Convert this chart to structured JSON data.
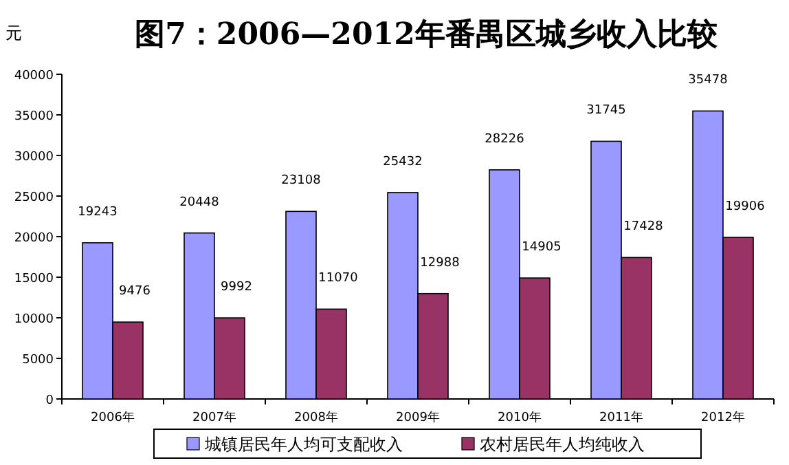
{
  "chart_data": {
    "type": "bar",
    "title": "图7：2006—2012年番禺区城乡收入比较",
    "ylabel": "元",
    "categories": [
      "2006年",
      "2007年",
      "2008年",
      "2009年",
      "2010年",
      "2011年",
      "2012年"
    ],
    "series": [
      {
        "name": "城镇居民年人均可支配收入",
        "color": "#9999ff",
        "values": [
          19243,
          20448,
          23108,
          25432,
          28226,
          31745,
          35478
        ]
      },
      {
        "name": "农村居民年人均纯收入",
        "color": "#993366",
        "values": [
          9476,
          9992,
          11070,
          12988,
          14905,
          17428,
          19906
        ]
      }
    ],
    "ylim": [
      0,
      40000
    ],
    "yticks": [
      0,
      5000,
      10000,
      15000,
      20000,
      25000,
      30000,
      35000,
      40000
    ],
    "data_labels": true,
    "grid": false,
    "legend": "bottom"
  }
}
